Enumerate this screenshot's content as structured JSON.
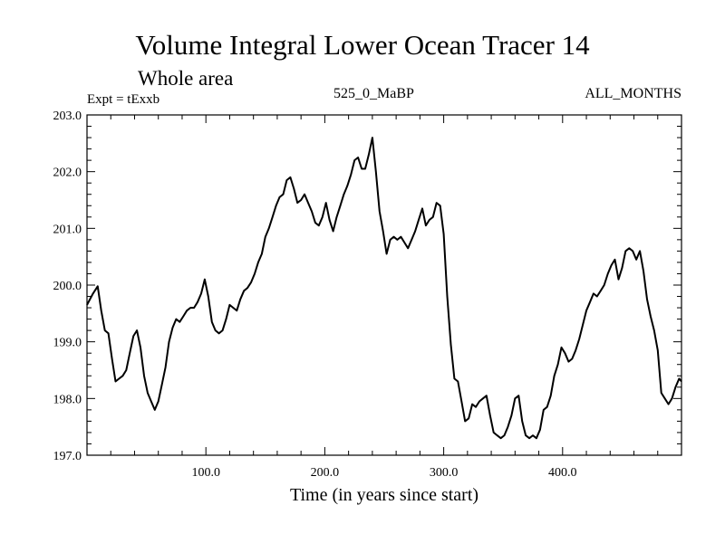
{
  "chart_data": {
    "type": "line",
    "title": "Volume Integral Lower Ocean Tracer 14",
    "subtitle": "Whole area",
    "experiment_label": "Expt = tExxb",
    "period_label": "525_0_MaBP",
    "months_label": "ALL_MONTHS",
    "xlabel": "Time (in years since start)",
    "ylabel": "",
    "xlim": [
      0,
      500
    ],
    "ylim": [
      197.0,
      203.0
    ],
    "x_ticks": [
      100,
      200,
      300,
      400
    ],
    "x_tick_labels": [
      "100.0",
      "200.0",
      "300.0",
      "400.0"
    ],
    "y_ticks": [
      197,
      198,
      199,
      200,
      201,
      202,
      203
    ],
    "y_tick_labels": [
      "197.0",
      "198.0",
      "199.0",
      "200.0",
      "201.0",
      "202.0",
      "203.0"
    ],
    "grid": false,
    "series": [
      {
        "name": "Lower Ocean Tracer 14",
        "color": "#000000",
        "x": [
          0,
          5,
          9,
          12,
          15,
          18,
          21,
          24,
          27,
          30,
          33,
          36,
          39,
          42,
          45,
          48,
          51,
          54,
          57,
          60,
          63,
          66,
          69,
          72,
          75,
          78,
          81,
          84,
          87,
          90,
          93,
          96,
          99,
          102,
          105,
          108,
          111,
          114,
          117,
          120,
          123,
          126,
          129,
          132,
          135,
          138,
          141,
          144,
          147,
          150,
          153,
          156,
          159,
          162,
          165,
          168,
          171,
          174,
          177,
          180,
          183,
          186,
          189,
          192,
          195,
          198,
          201,
          204,
          207,
          210,
          213,
          216,
          219,
          222,
          225,
          228,
          231,
          234,
          237,
          240,
          243,
          246,
          249,
          252,
          255,
          258,
          261,
          264,
          267,
          270,
          273,
          276,
          279,
          282,
          285,
          288,
          291,
          294,
          297,
          300,
          303,
          306,
          309,
          312,
          315,
          318,
          321,
          324,
          327,
          330,
          333,
          336,
          339,
          342,
          345,
          348,
          351,
          354,
          357,
          360,
          363,
          366,
          369,
          372,
          375,
          378,
          381,
          384,
          387,
          390,
          393,
          396,
          399,
          402,
          405,
          408,
          411,
          414,
          417,
          420,
          423,
          426,
          429,
          432,
          435,
          438,
          441,
          444,
          447,
          450,
          453,
          456,
          459,
          462,
          465,
          468,
          471,
          474,
          477,
          480,
          483,
          486,
          489,
          492,
          495,
          498,
          500
        ],
        "values": [
          199.65,
          199.85,
          199.98,
          199.55,
          199.2,
          199.15,
          198.7,
          198.3,
          198.35,
          198.4,
          198.5,
          198.8,
          199.1,
          199.2,
          198.9,
          198.4,
          198.1,
          197.95,
          197.8,
          197.95,
          198.25,
          198.55,
          199.0,
          199.25,
          199.4,
          199.35,
          199.45,
          199.55,
          199.6,
          199.6,
          199.7,
          199.85,
          200.1,
          199.8,
          199.35,
          199.2,
          199.15,
          199.2,
          199.4,
          199.65,
          199.6,
          199.55,
          199.75,
          199.9,
          199.95,
          200.05,
          200.2,
          200.4,
          200.55,
          200.85,
          201.0,
          201.2,
          201.4,
          201.55,
          201.6,
          201.85,
          201.9,
          201.7,
          201.45,
          201.5,
          201.6,
          201.45,
          201.3,
          201.1,
          201.05,
          201.2,
          201.45,
          201.15,
          200.95,
          201.2,
          201.4,
          201.6,
          201.75,
          201.95,
          202.2,
          202.25,
          202.05,
          202.05,
          202.3,
          202.6,
          202.0,
          201.3,
          200.95,
          200.55,
          200.8,
          200.85,
          200.8,
          200.85,
          200.75,
          200.65,
          200.8,
          200.95,
          201.15,
          201.35,
          201.05,
          201.15,
          201.2,
          201.45,
          201.4,
          200.9,
          199.8,
          198.95,
          198.35,
          198.3,
          197.95,
          197.6,
          197.65,
          197.9,
          197.85,
          197.95,
          198.0,
          198.05,
          197.7,
          197.4,
          197.35,
          197.3,
          197.35,
          197.5,
          197.7,
          198.0,
          198.05,
          197.6,
          197.35,
          197.3,
          197.35,
          197.3,
          197.45,
          197.8,
          197.85,
          198.05,
          198.4,
          198.6,
          198.9,
          198.8,
          198.65,
          198.7,
          198.85,
          199.05,
          199.3,
          199.55,
          199.7,
          199.85,
          199.8,
          199.9,
          200.0,
          200.2,
          200.35,
          200.45,
          200.1,
          200.3,
          200.6,
          200.65,
          200.6,
          200.45,
          200.6,
          200.25,
          199.75,
          199.45,
          199.2,
          198.85,
          198.1,
          198.0,
          197.9,
          198.0,
          198.2,
          198.35,
          198.3
        ]
      }
    ]
  }
}
